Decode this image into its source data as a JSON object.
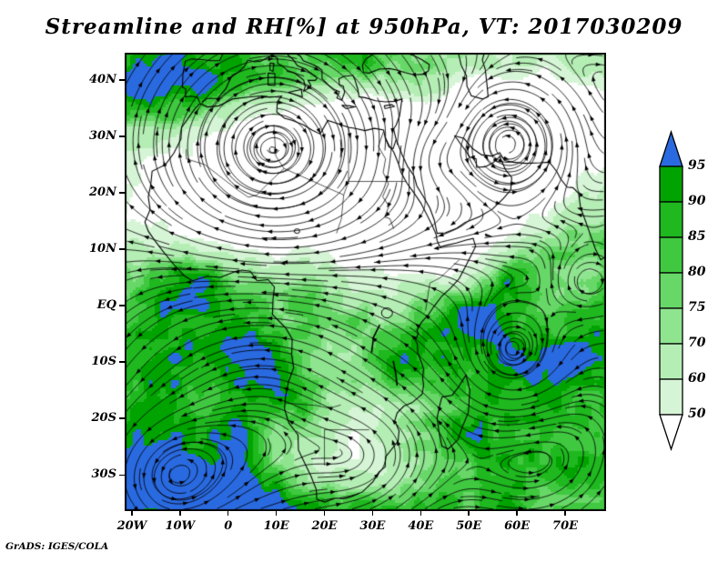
{
  "title": "Streamline and RH[%] at 950hPa, VT: 2017030209",
  "attribution": "GrADS: IGES/COLA",
  "chart_data": {
    "type": "heatmap",
    "subtype": "streamline_and_shaded_contour_map",
    "field": "Relative Humidity [%]",
    "overlay": "950 hPa wind streamlines with arrowheads",
    "level_hPa": 950,
    "valid_time": "2017030209",
    "region": "Africa, tropical Atlantic, Indian Ocean, Middle East",
    "lon_range": [
      -21.5,
      78.5
    ],
    "lat_range": [
      -36.4,
      44.8
    ],
    "grid_on": false,
    "legend_position": "right",
    "x_ticks": [
      {
        "label": "20W",
        "lon": -20
      },
      {
        "label": "10W",
        "lon": -10
      },
      {
        "label": "0",
        "lon": 0
      },
      {
        "label": "10E",
        "lon": 10
      },
      {
        "label": "20E",
        "lon": 20
      },
      {
        "label": "30E",
        "lon": 30
      },
      {
        "label": "40E",
        "lon": 40
      },
      {
        "label": "50E",
        "lon": 50
      },
      {
        "label": "60E",
        "lon": 60
      },
      {
        "label": "70E",
        "lon": 70
      }
    ],
    "y_ticks": [
      {
        "label": "40N",
        "lat": 40
      },
      {
        "label": "30N",
        "lat": 30
      },
      {
        "label": "20N",
        "lat": 20
      },
      {
        "label": "10N",
        "lat": 10
      },
      {
        "label": "EQ",
        "lat": 0
      },
      {
        "label": "10S",
        "lat": -10
      },
      {
        "label": "20S",
        "lat": -20
      },
      {
        "label": "30S",
        "lat": -30
      }
    ],
    "colorbar": {
      "orientation": "vertical",
      "tick_labels": [
        "95",
        "90",
        "85",
        "80",
        "75",
        "70",
        "60",
        "50"
      ],
      "levels": [
        95,
        90,
        85,
        80,
        75,
        70,
        60,
        50
      ],
      "segment_colors_top_to_bottom": [
        "#00a300",
        "#1fb81f",
        "#40c940",
        "#67d767",
        "#8fe48f",
        "#b5eeb5",
        "#d6f5d6"
      ],
      "over_color": "#2a6ae0",
      "under_color": "#ffffff",
      "outline_color": "#000000"
    }
  }
}
